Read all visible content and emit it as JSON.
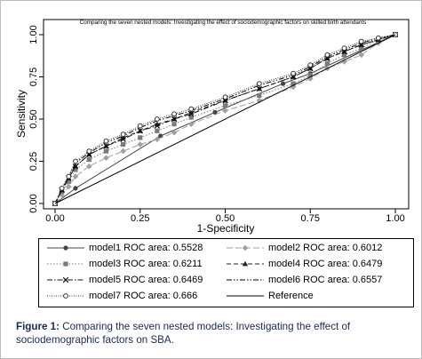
{
  "chart_data": {
    "type": "line",
    "title": "Comparing the seven nested models:  Investigating the effect of sociodemographic factors on skilled birth attendants",
    "xlabel": "1-Specificity",
    "ylabel": "Sensitivity",
    "xlim": [
      0,
      1
    ],
    "ylim": [
      0,
      1
    ],
    "xticks": [
      "0.00",
      "0.25",
      "0.50",
      "0.75",
      "1.00"
    ],
    "yticks": [
      "0.00",
      "0.25",
      "0.50",
      "0.75",
      "1.00"
    ],
    "grid": false,
    "legend_position": "bottom",
    "series": [
      {
        "name": "model1 ROC area: 0.5528",
        "style": "solid",
        "marker": "circle",
        "color": "#444444",
        "x": [
          0,
          0.06,
          0.31,
          0.47,
          0.67,
          0.75,
          1.0
        ],
        "y": [
          0,
          0.09,
          0.4,
          0.54,
          0.71,
          0.77,
          1.0
        ]
      },
      {
        "name": "model2 ROC area: 0.6012",
        "style": "longdash",
        "marker": "diamond",
        "color": "#a0a0a0",
        "x": [
          0,
          0.02,
          0.04,
          0.06,
          0.1,
          0.15,
          0.2,
          0.25,
          0.3,
          0.35,
          0.4,
          0.5,
          0.6,
          0.7,
          0.75,
          0.8,
          0.85,
          0.9,
          0.95,
          1.0
        ],
        "y": [
          0,
          0.05,
          0.1,
          0.16,
          0.22,
          0.27,
          0.31,
          0.35,
          0.38,
          0.42,
          0.47,
          0.55,
          0.61,
          0.69,
          0.74,
          0.8,
          0.84,
          0.88,
          0.95,
          1.0
        ]
      },
      {
        "name": "model3 ROC area: 0.6211",
        "style": "dotted",
        "marker": "square",
        "color": "#7a7a7a",
        "x": [
          0,
          0.02,
          0.04,
          0.06,
          0.1,
          0.15,
          0.2,
          0.25,
          0.3,
          0.35,
          0.4,
          0.5,
          0.6,
          0.7,
          0.75,
          0.8,
          0.85,
          0.9,
          0.95,
          1.0
        ],
        "y": [
          0,
          0.07,
          0.13,
          0.2,
          0.26,
          0.31,
          0.35,
          0.39,
          0.43,
          0.47,
          0.51,
          0.58,
          0.64,
          0.71,
          0.76,
          0.83,
          0.88,
          0.92,
          0.97,
          1.0
        ]
      },
      {
        "name": "model4 ROC area: 0.6479",
        "style": "dash",
        "marker": "triangle",
        "color": "#222222",
        "x": [
          0,
          0.02,
          0.04,
          0.06,
          0.1,
          0.15,
          0.2,
          0.25,
          0.3,
          0.35,
          0.4,
          0.5,
          0.6,
          0.7,
          0.75,
          0.8,
          0.85,
          0.9,
          0.95,
          1.0
        ],
        "y": [
          0,
          0.08,
          0.15,
          0.22,
          0.29,
          0.34,
          0.39,
          0.43,
          0.47,
          0.5,
          0.54,
          0.61,
          0.68,
          0.75,
          0.8,
          0.86,
          0.9,
          0.94,
          0.97,
          1.0
        ]
      },
      {
        "name": "model5 ROC area: 0.6469",
        "style": "dashdot",
        "marker": "x",
        "color": "#111111",
        "x": [
          0,
          0.02,
          0.04,
          0.06,
          0.1,
          0.15,
          0.2,
          0.25,
          0.3,
          0.35,
          0.4,
          0.5,
          0.6,
          0.7,
          0.75,
          0.8,
          0.85,
          0.9,
          0.95,
          1.0
        ],
        "y": [
          0,
          0.08,
          0.15,
          0.22,
          0.29,
          0.34,
          0.38,
          0.43,
          0.46,
          0.5,
          0.53,
          0.61,
          0.68,
          0.75,
          0.8,
          0.86,
          0.9,
          0.94,
          0.97,
          1.0
        ]
      },
      {
        "name": "model6 ROC area: 0.6557",
        "style": "dashdotdot",
        "marker": "none",
        "color": "#000000",
        "x": [
          0,
          0.02,
          0.04,
          0.06,
          0.1,
          0.15,
          0.2,
          0.25,
          0.3,
          0.35,
          0.4,
          0.5,
          0.6,
          0.7,
          0.75,
          0.8,
          0.85,
          0.9,
          0.95,
          1.0
        ],
        "y": [
          0,
          0.09,
          0.16,
          0.24,
          0.3,
          0.36,
          0.4,
          0.45,
          0.49,
          0.52,
          0.55,
          0.62,
          0.7,
          0.76,
          0.81,
          0.87,
          0.91,
          0.95,
          0.98,
          1.0
        ]
      },
      {
        "name": "model7 ROC area: 0.666",
        "style": "densedot",
        "marker": "ring",
        "color": "#333333",
        "x": [
          0,
          0.02,
          0.04,
          0.06,
          0.1,
          0.15,
          0.2,
          0.25,
          0.3,
          0.35,
          0.4,
          0.5,
          0.6,
          0.7,
          0.75,
          0.8,
          0.85,
          0.9,
          0.95,
          1.0
        ],
        "y": [
          0,
          0.09,
          0.16,
          0.25,
          0.31,
          0.37,
          0.41,
          0.46,
          0.5,
          0.53,
          0.56,
          0.63,
          0.71,
          0.77,
          0.82,
          0.88,
          0.92,
          0.96,
          0.98,
          1.0
        ]
      },
      {
        "name": "Reference",
        "style": "solid",
        "marker": "none",
        "color": "#000000",
        "x": [
          0,
          1
        ],
        "y": [
          0,
          1
        ]
      }
    ]
  },
  "caption": {
    "label": "Figure 1:",
    "text": " Comparing the seven nested models: Investigating the effect of sociodemographic factors on SBA."
  }
}
